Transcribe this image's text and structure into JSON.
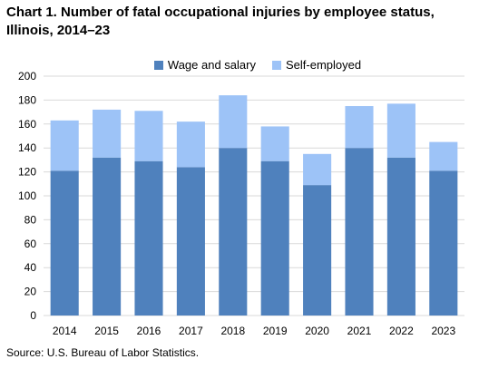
{
  "header": {
    "title": "Chart 1. Number of fatal occupational injuries by employee status, Illinois, 2014–23"
  },
  "footer": {
    "source": "Source: U.S. Bureau  of Labor Statistics."
  },
  "chart_data": {
    "type": "bar",
    "stacked": true,
    "title": "Chart 1. Number of fatal occupational injuries by employee status, Illinois, 2014–23",
    "xlabel": "",
    "ylabel": "",
    "categories": [
      "2014",
      "2015",
      "2016",
      "2017",
      "2018",
      "2019",
      "2020",
      "2021",
      "2022",
      "2023"
    ],
    "ylim": [
      0,
      200
    ],
    "yticks": [
      "0",
      "20",
      "40",
      "60",
      "80",
      "100",
      "120",
      "140",
      "160",
      "180",
      "200"
    ],
    "grid": true,
    "legend_position": "top",
    "series": [
      {
        "name": "Wage and salary",
        "color": "#4f81bd",
        "values": [
          121,
          132,
          129,
          124,
          140,
          129,
          109,
          140,
          132,
          121
        ]
      },
      {
        "name": "Self-employed",
        "color": "#9dc3f7",
        "values": [
          42,
          40,
          42,
          38,
          44,
          29,
          26,
          35,
          45,
          24
        ]
      }
    ]
  }
}
